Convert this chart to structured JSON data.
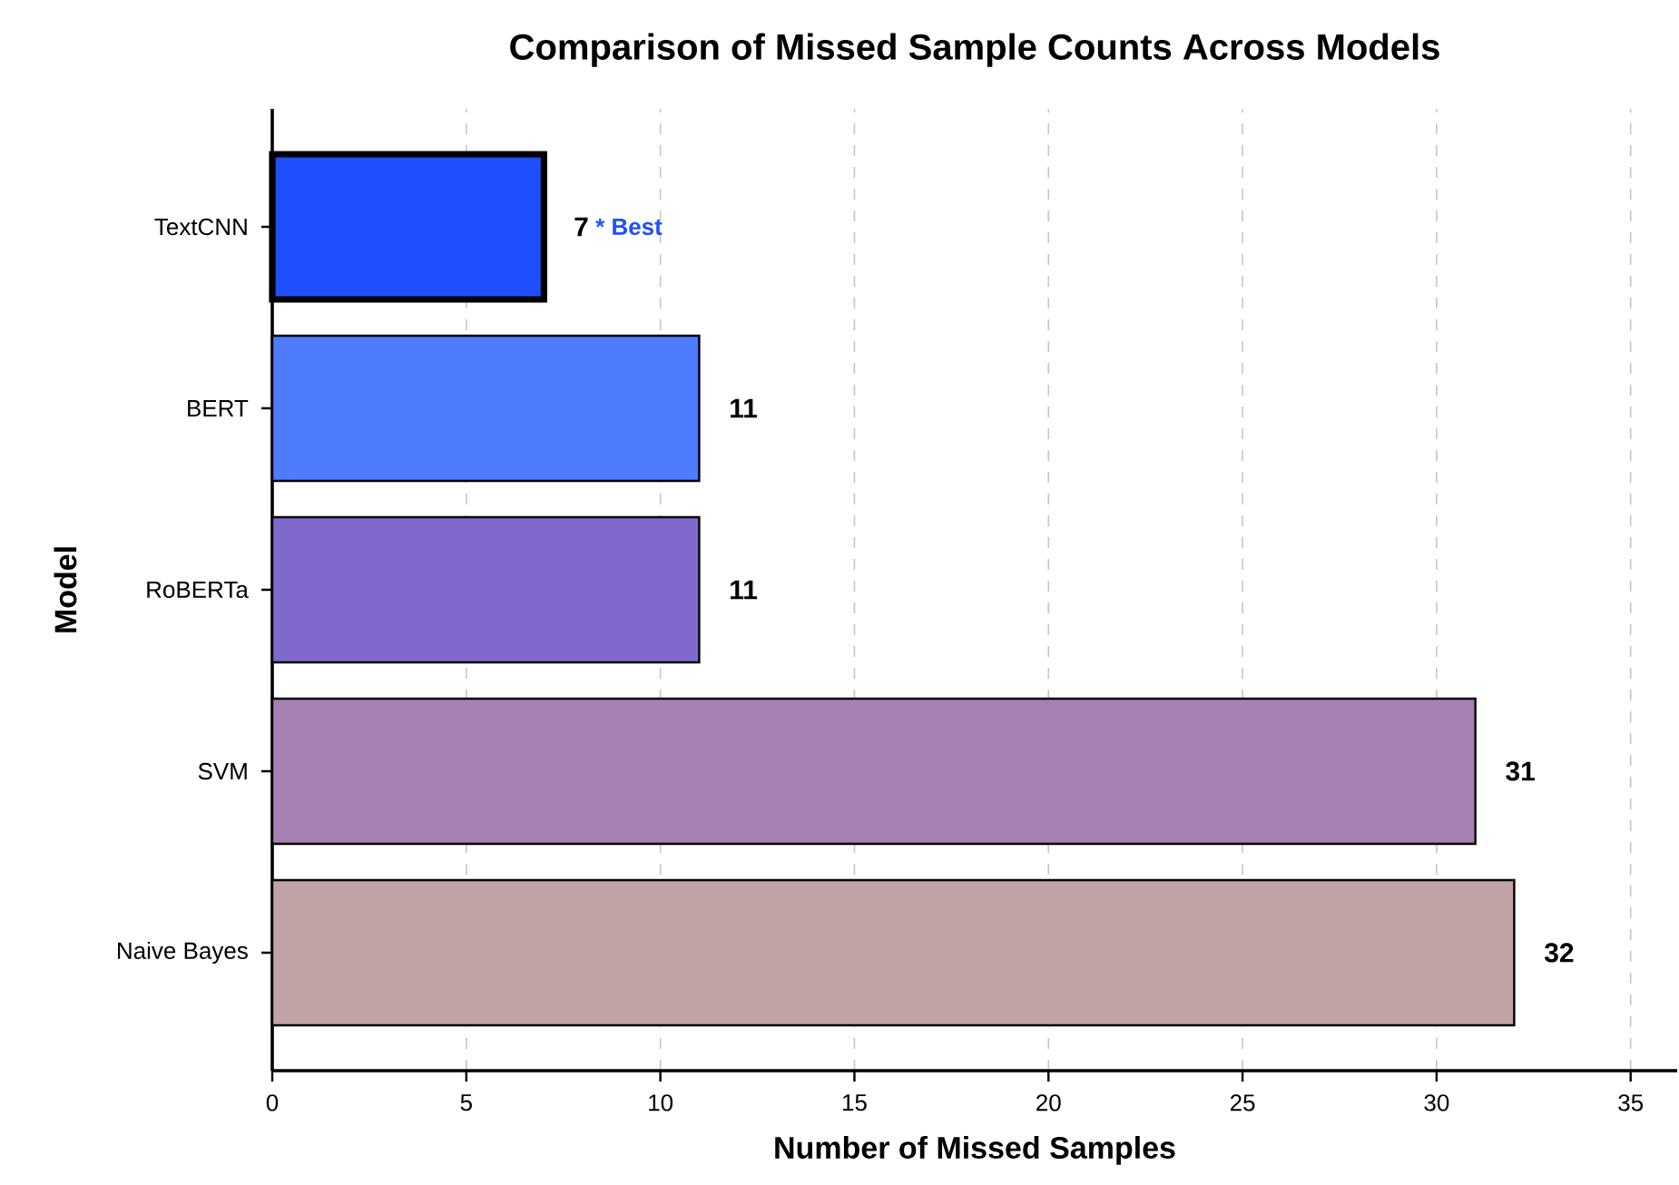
{
  "chart_data": {
    "type": "bar",
    "orientation": "horizontal",
    "title": "Comparison of Missed Sample Counts Across Models",
    "xlabel": "Number of Missed Samples",
    "ylabel": "Model",
    "categories": [
      "TextCNN",
      "BERT",
      "RoBERTa",
      "SVM",
      "Naive Bayes"
    ],
    "values": [
      7,
      11,
      11,
      31,
      32
    ],
    "colors": [
      "#1f4fff",
      "#4f7bff",
      "#8068cc",
      "#a680b2",
      "#c2a3a5"
    ],
    "xlim": [
      0,
      36.2
    ],
    "xticks": [
      0,
      5,
      10,
      15,
      20,
      25,
      30,
      35
    ],
    "grid": "x",
    "data_labels": true,
    "annotations": [
      {
        "text": "* Best",
        "x": 7,
        "y": "TextCNN"
      }
    ]
  }
}
